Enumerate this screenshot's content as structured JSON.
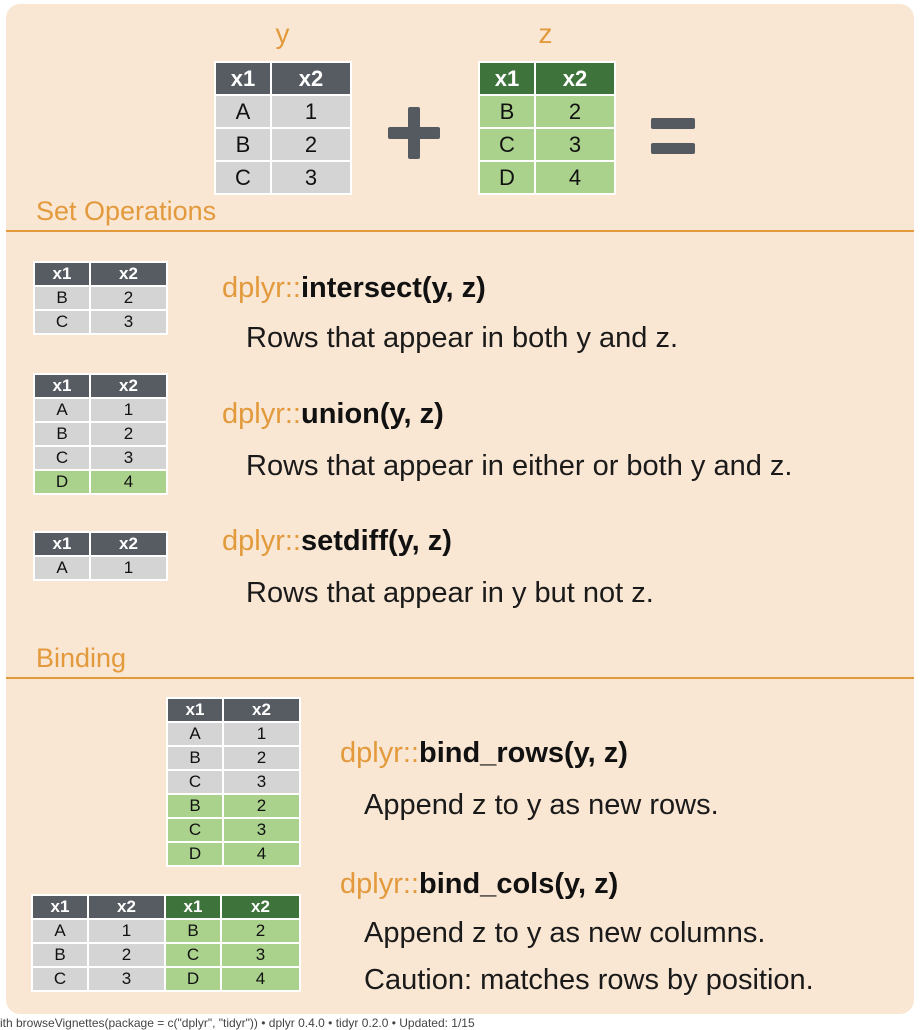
{
  "colors": {
    "accent": "#e39a3c",
    "y_header": "#575b62",
    "z_header": "#3e733c",
    "y_cell": "#d4d4d4",
    "z_cell": "#abd28c",
    "background": "#f9e6d3"
  },
  "inputs": {
    "y": {
      "name": "y",
      "headers": [
        "x1",
        "x2"
      ],
      "rows": [
        [
          "A",
          "1"
        ],
        [
          "B",
          "2"
        ],
        [
          "C",
          "3"
        ]
      ]
    },
    "z": {
      "name": "z",
      "headers": [
        "x1",
        "x2"
      ],
      "rows": [
        [
          "B",
          "2"
        ],
        [
          "C",
          "3"
        ],
        [
          "D",
          "4"
        ]
      ]
    }
  },
  "set_operations": {
    "title": "Set Operations",
    "items": [
      {
        "pkg": "dplyr::",
        "fn": "intersect(y, z)",
        "desc": "Rows that appear in both y and z."
      },
      {
        "pkg": "dplyr::",
        "fn": "union(y, z)",
        "desc": "Rows that appear in either or both y and z."
      },
      {
        "pkg": "dplyr::",
        "fn": "setdiff(y, z)",
        "desc": "Rows that appear in y but not z."
      }
    ]
  },
  "binding": {
    "title": "Binding",
    "bind_rows": {
      "pkg": "dplyr::",
      "fn": "bind_rows(y, z)",
      "desc": "Append z to y as new rows."
    },
    "bind_cols": {
      "pkg": "dplyr::",
      "fn": "bind_cols(y, z)",
      "desc": "Append z to y as new columns.",
      "caution": "Caution: matches rows by position."
    }
  },
  "results": {
    "intersect": {
      "headers": [
        "x1",
        "x2"
      ],
      "rows": [
        [
          "B",
          "2"
        ],
        [
          "C",
          "3"
        ]
      ]
    },
    "union": {
      "headers": [
        "x1",
        "x2"
      ],
      "rows": [
        [
          "A",
          "1"
        ],
        [
          "B",
          "2"
        ],
        [
          "C",
          "3"
        ],
        [
          "D",
          "4"
        ]
      ]
    },
    "setdiff": {
      "headers": [
        "x1",
        "x2"
      ],
      "rows": [
        [
          "A",
          "1"
        ]
      ]
    },
    "bind_rows": {
      "headers": [
        "x1",
        "x2"
      ],
      "rows": [
        [
          "A",
          "1"
        ],
        [
          "B",
          "2"
        ],
        [
          "C",
          "3"
        ],
        [
          "B",
          "2"
        ],
        [
          "C",
          "3"
        ],
        [
          "D",
          "4"
        ]
      ]
    },
    "bind_cols": {
      "headers": [
        "x1",
        "x2",
        "x1",
        "x2"
      ],
      "rows": [
        [
          "A",
          "1",
          "B",
          "2"
        ],
        [
          "B",
          "2",
          "C",
          "3"
        ],
        [
          "C",
          "3",
          "D",
          "4"
        ]
      ]
    }
  },
  "footer": "ith browseVignettes(package = c(\"dplyr\", \"tidyr\"))  •  dplyr  0.4.0  •  tidyr  0.2.0  •  Updated: 1/15"
}
